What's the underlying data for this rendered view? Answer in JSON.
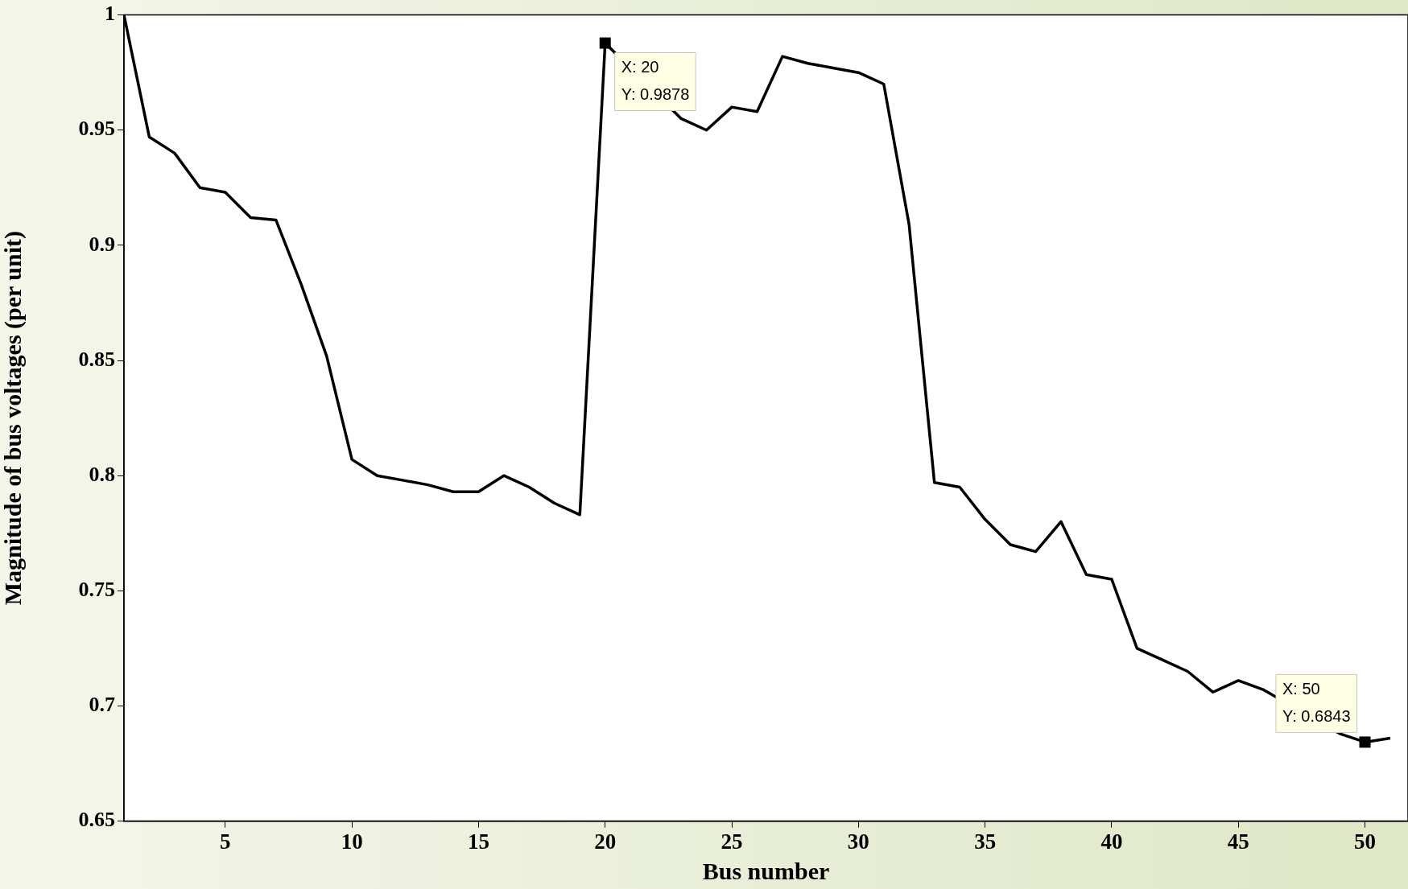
{
  "chart_data": {
    "type": "line",
    "xlabel": "Bus number",
    "ylabel": "Magnitude of bus voltages (per unit)",
    "x": [
      1,
      2,
      3,
      4,
      5,
      6,
      7,
      8,
      9,
      10,
      11,
      12,
      13,
      14,
      15,
      16,
      17,
      18,
      19,
      20,
      21,
      22,
      23,
      24,
      25,
      26,
      27,
      28,
      29,
      30,
      31,
      32,
      33,
      34,
      35,
      36,
      37,
      38,
      39,
      40,
      41,
      42,
      43,
      44,
      45,
      46,
      47,
      48,
      49,
      50,
      51
    ],
    "series": [
      {
        "color": "#000000",
        "values": [
          1.0,
          0.947,
          0.94,
          0.925,
          0.923,
          0.912,
          0.911,
          0.883,
          0.852,
          0.807,
          0.8,
          0.798,
          0.796,
          0.793,
          0.793,
          0.8,
          0.795,
          0.788,
          0.783,
          0.9878,
          null,
          null,
          0.955,
          0.95,
          0.96,
          0.958,
          0.982,
          0.979,
          0.977,
          0.975,
          0.97,
          0.909,
          0.797,
          0.795,
          0.781,
          0.77,
          0.767,
          0.78,
          0.757,
          0.755,
          0.725,
          0.72,
          0.715,
          0.706,
          0.711,
          0.707,
          null,
          null,
          0.688,
          0.6843,
          0.686
        ]
      }
    ],
    "xlim": [
      1,
      51.7
    ],
    "xticks": [
      5,
      10,
      15,
      20,
      25,
      30,
      35,
      40,
      45,
      50
    ],
    "ylim": [
      0.65,
      1
    ],
    "yticks": [
      0.65,
      0.7,
      0.75,
      0.8,
      0.85,
      0.9,
      0.95,
      1
    ],
    "grid": false,
    "legend": false,
    "marker": "none",
    "line_style": "solid",
    "annotations": [
      {
        "text": "X: 20\nY: 0.9878",
        "x": 20,
        "y": 0.9878
      },
      {
        "text": "X: 50\nY: 0.6843",
        "x": 50,
        "y": 0.6843
      }
    ]
  }
}
